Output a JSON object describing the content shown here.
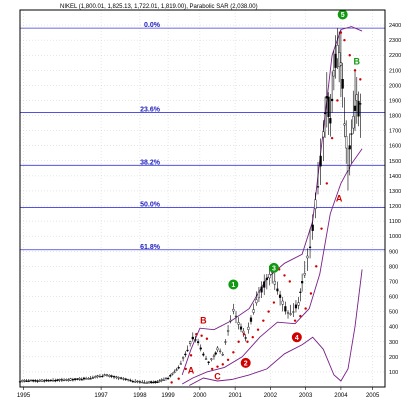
{
  "chart_data": {
    "type": "candlestick",
    "title": "NIKEL (1,800.01, 1,825.13, 1,722.01, 1,819.00), Parabolic SAR (2,038.00)",
    "x_ticks": [
      "1995",
      "1997",
      "1998",
      "1999",
      "2000",
      "2001",
      "2002",
      "2003",
      "2004",
      "2005"
    ],
    "y_ticks": [
      100,
      200,
      300,
      400,
      500,
      600,
      700,
      800,
      900,
      1000,
      1100,
      1200,
      1300,
      1400,
      1500,
      1600,
      1700,
      1800,
      1900,
      2000,
      2100,
      2200,
      2300,
      2400
    ],
    "ylim": [
      0,
      2500
    ],
    "grid": true,
    "fib_levels": [
      {
        "label": "0.0%",
        "value": 2380
      },
      {
        "label": "23.6%",
        "value": 1820
      },
      {
        "label": "38.2%",
        "value": 1470
      },
      {
        "label": "50.0%",
        "value": 1190
      },
      {
        "label": "61.8%",
        "value": 910
      }
    ],
    "wave_labels": [
      {
        "text": "A",
        "color": "#d00000",
        "circled": false,
        "x": 1999.85,
        "y": 110
      },
      {
        "text": "B",
        "color": "#d00000",
        "circled": false,
        "x": 2000.2,
        "y": 440
      },
      {
        "text": "C",
        "color": "#d00000",
        "circled": false,
        "x": 2000.6,
        "y": 70
      },
      {
        "text": "1",
        "color": "#119911",
        "circled": true,
        "x": 2001.05,
        "y": 680
      },
      {
        "text": "2",
        "color": "#d00000",
        "circled": true,
        "x": 2001.4,
        "y": 160
      },
      {
        "text": "3",
        "color": "#119911",
        "circled": true,
        "x": 2002.2,
        "y": 790
      },
      {
        "text": "4",
        "color": "#d00000",
        "circled": true,
        "x": 2002.85,
        "y": 330
      },
      {
        "text": "5",
        "color": "#119911",
        "circled": true,
        "x": 2004.15,
        "y": 2470
      },
      {
        "text": "B",
        "color": "#119911",
        "circled": false,
        "x": 2004.55,
        "y": 2160
      },
      {
        "text": "A",
        "color": "#d00000",
        "circled": false,
        "x": 2004.05,
        "y": 1250
      }
    ],
    "price_series": [
      {
        "x": 1995.0,
        "y": 40
      },
      {
        "x": 1995.5,
        "y": 42
      },
      {
        "x": 1996.0,
        "y": 45
      },
      {
        "x": 1996.5,
        "y": 50
      },
      {
        "x": 1997.0,
        "y": 60
      },
      {
        "x": 1997.4,
        "y": 80
      },
      {
        "x": 1997.8,
        "y": 60
      },
      {
        "x": 1998.2,
        "y": 40
      },
      {
        "x": 1998.6,
        "y": 30
      },
      {
        "x": 1998.9,
        "y": 35
      },
      {
        "x": 1999.2,
        "y": 60
      },
      {
        "x": 1999.5,
        "y": 130
      },
      {
        "x": 1999.75,
        "y": 250
      },
      {
        "x": 1999.9,
        "y": 330
      },
      {
        "x": 2000.05,
        "y": 300
      },
      {
        "x": 2000.2,
        "y": 220
      },
      {
        "x": 2000.35,
        "y": 160
      },
      {
        "x": 2000.5,
        "y": 200
      },
      {
        "x": 2000.6,
        "y": 250
      },
      {
        "x": 2000.75,
        "y": 220
      },
      {
        "x": 2000.9,
        "y": 380
      },
      {
        "x": 2001.05,
        "y": 520
      },
      {
        "x": 2001.2,
        "y": 420
      },
      {
        "x": 2001.4,
        "y": 330
      },
      {
        "x": 2001.55,
        "y": 450
      },
      {
        "x": 2001.7,
        "y": 580
      },
      {
        "x": 2001.85,
        "y": 650
      },
      {
        "x": 2002.0,
        "y": 700
      },
      {
        "x": 2002.15,
        "y": 760
      },
      {
        "x": 2002.3,
        "y": 650
      },
      {
        "x": 2002.45,
        "y": 560
      },
      {
        "x": 2002.6,
        "y": 480
      },
      {
        "x": 2002.75,
        "y": 520
      },
      {
        "x": 2002.9,
        "y": 560
      },
      {
        "x": 2003.0,
        "y": 680
      },
      {
        "x": 2003.15,
        "y": 850
      },
      {
        "x": 2003.3,
        "y": 1050
      },
      {
        "x": 2003.45,
        "y": 1350
      },
      {
        "x": 2003.6,
        "y": 1650
      },
      {
        "x": 2003.7,
        "y": 1900
      },
      {
        "x": 2003.8,
        "y": 1800
      },
      {
        "x": 2003.9,
        "y": 2100
      },
      {
        "x": 2004.0,
        "y": 2250
      },
      {
        "x": 2004.1,
        "y": 2150
      },
      {
        "x": 2004.2,
        "y": 1800
      },
      {
        "x": 2004.3,
        "y": 1450
      },
      {
        "x": 2004.4,
        "y": 1650
      },
      {
        "x": 2004.5,
        "y": 1900
      },
      {
        "x": 2004.6,
        "y": 1850
      },
      {
        "x": 2004.7,
        "y": 1819
      }
    ],
    "psar_dots": [
      {
        "x": 1999.3,
        "y": 30
      },
      {
        "x": 1999.5,
        "y": 55
      },
      {
        "x": 1999.7,
        "y": 120
      },
      {
        "x": 1999.85,
        "y": 210
      },
      {
        "x": 2000.0,
        "y": 350
      },
      {
        "x": 2000.15,
        "y": 340
      },
      {
        "x": 2000.3,
        "y": 320
      },
      {
        "x": 2000.45,
        "y": 120
      },
      {
        "x": 2000.6,
        "y": 135
      },
      {
        "x": 2000.75,
        "y": 150
      },
      {
        "x": 2000.9,
        "y": 180
      },
      {
        "x": 2001.05,
        "y": 230
      },
      {
        "x": 2001.2,
        "y": 300
      },
      {
        "x": 2001.35,
        "y": 350
      },
      {
        "x": 2001.45,
        "y": 300
      },
      {
        "x": 2001.6,
        "y": 330
      },
      {
        "x": 2001.75,
        "y": 380
      },
      {
        "x": 2001.9,
        "y": 440
      },
      {
        "x": 2002.05,
        "y": 500
      },
      {
        "x": 2002.2,
        "y": 560
      },
      {
        "x": 2002.35,
        "y": 780
      },
      {
        "x": 2002.5,
        "y": 740
      },
      {
        "x": 2002.65,
        "y": 700
      },
      {
        "x": 2002.8,
        "y": 440
      },
      {
        "x": 2002.95,
        "y": 470
      },
      {
        "x": 2003.1,
        "y": 520
      },
      {
        "x": 2003.25,
        "y": 620
      },
      {
        "x": 2003.4,
        "y": 800
      },
      {
        "x": 2003.55,
        "y": 1050
      },
      {
        "x": 2003.7,
        "y": 1350
      },
      {
        "x": 2003.85,
        "y": 1650
      },
      {
        "x": 2004.0,
        "y": 1900
      },
      {
        "x": 2004.1,
        "y": 2350
      },
      {
        "x": 2004.2,
        "y": 2300
      },
      {
        "x": 2004.35,
        "y": 2200
      },
      {
        "x": 2004.5,
        "y": 2100
      },
      {
        "x": 2004.65,
        "y": 2040
      }
    ],
    "upper_band": [
      {
        "x": 1999.6,
        "y": 80
      },
      {
        "x": 1999.85,
        "y": 250
      },
      {
        "x": 2000.1,
        "y": 390
      },
      {
        "x": 2000.5,
        "y": 380
      },
      {
        "x": 2001.0,
        "y": 440
      },
      {
        "x": 2001.5,
        "y": 520
      },
      {
        "x": 2002.0,
        "y": 720
      },
      {
        "x": 2002.5,
        "y": 820
      },
      {
        "x": 2003.0,
        "y": 880
      },
      {
        "x": 2003.3,
        "y": 1100
      },
      {
        "x": 2003.6,
        "y": 1700
      },
      {
        "x": 2003.85,
        "y": 2200
      },
      {
        "x": 2004.1,
        "y": 2370
      },
      {
        "x": 2004.4,
        "y": 2390
      },
      {
        "x": 2004.7,
        "y": 2360
      }
    ],
    "lower_band": [
      {
        "x": 1999.6,
        "y": 20
      },
      {
        "x": 1999.9,
        "y": 60
      },
      {
        "x": 2000.3,
        "y": 100
      },
      {
        "x": 2000.8,
        "y": 130
      },
      {
        "x": 2001.3,
        "y": 200
      },
      {
        "x": 2001.8,
        "y": 330
      },
      {
        "x": 2002.3,
        "y": 430
      },
      {
        "x": 2002.8,
        "y": 420
      },
      {
        "x": 2003.2,
        "y": 520
      },
      {
        "x": 2003.5,
        "y": 750
      },
      {
        "x": 2003.8,
        "y": 1150
      },
      {
        "x": 2004.1,
        "y": 1350
      },
      {
        "x": 2004.4,
        "y": 1480
      },
      {
        "x": 2004.7,
        "y": 1580
      }
    ],
    "indicator_line": [
      {
        "x": 1999.8,
        "y": 10
      },
      {
        "x": 2000.2,
        "y": 60
      },
      {
        "x": 2000.6,
        "y": 40
      },
      {
        "x": 2001.0,
        "y": 50
      },
      {
        "x": 2001.5,
        "y": 80
      },
      {
        "x": 2002.0,
        "y": 120
      },
      {
        "x": 2002.5,
        "y": 220
      },
      {
        "x": 2003.0,
        "y": 280
      },
      {
        "x": 2003.3,
        "y": 330
      },
      {
        "x": 2003.6,
        "y": 250
      },
      {
        "x": 2003.9,
        "y": 80
      },
      {
        "x": 2004.1,
        "y": 40
      },
      {
        "x": 2004.3,
        "y": 120
      },
      {
        "x": 2004.5,
        "y": 400
      },
      {
        "x": 2004.7,
        "y": 780
      }
    ]
  }
}
